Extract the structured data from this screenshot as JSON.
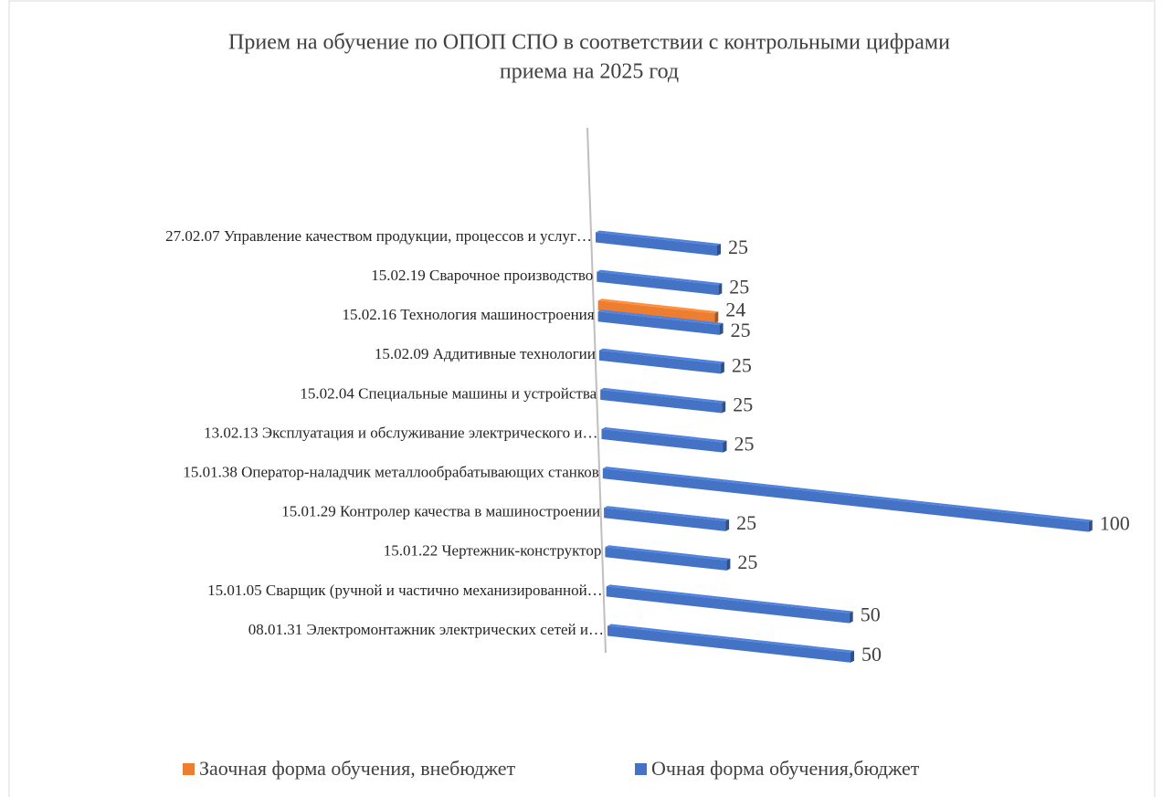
{
  "chart_data": {
    "type": "bar3d_horizontal",
    "title_lines": [
      "Прием на обучение по ОПОП СПО в соответствии с контрольными цифрами",
      "приема на 2025 год"
    ],
    "categories": [
      "27.02.07 Управление качеством продукции, процессов и услуг…",
      "15.02.19 Сварочное производство",
      "15.02.16 Технология машиностроения",
      "15.02.09 Аддитивные технологии",
      "15.02.04 Специальные машины и устройства",
      "13.02.13 Эксплуатация и обслуживание электрического и…",
      "15.01.38 Оператор-наладчик металлообрабатывающих станков",
      "15.01.29 Контролер качества в машиностроении",
      "15.01.22 Чертежник-конструктор",
      "15.01.05 Сварщик (ручной и частично механизированной…",
      "08.01.31 Электромонтажник электрических сетей и…"
    ],
    "series": [
      {
        "name": "Заочная форма обучения, внебюджет",
        "color": "#ed7d31",
        "values": [
          null,
          null,
          24,
          null,
          null,
          null,
          null,
          null,
          null,
          null,
          null
        ]
      },
      {
        "name": "Очная форма обучения,бюджет",
        "color": "#4472c4",
        "values": [
          25,
          25,
          25,
          25,
          25,
          25,
          100,
          25,
          25,
          50,
          50
        ]
      }
    ],
    "legend": "bottom"
  }
}
